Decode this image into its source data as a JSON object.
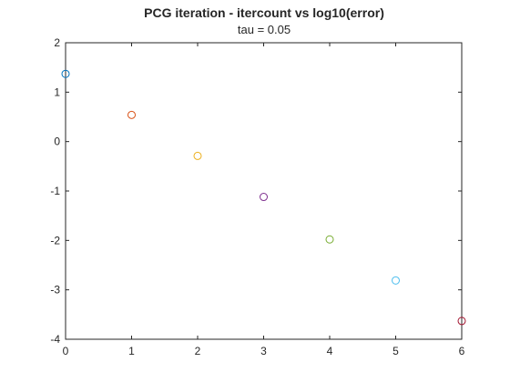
{
  "chart_data": {
    "type": "scatter",
    "title": "PCG iteration - itercount vs log10(error)",
    "subtitle": "tau = 0.05",
    "xlabel": "",
    "ylabel": "",
    "xlim": [
      0,
      6
    ],
    "ylim": [
      -4,
      2
    ],
    "xticks": [
      "0",
      "1",
      "2",
      "3",
      "4",
      "5",
      "6"
    ],
    "yticks": [
      "2",
      "1",
      "0",
      "-1",
      "-2",
      "-3",
      "-4"
    ],
    "grid": false,
    "marker": "circle-open",
    "points": [
      {
        "x": 0,
        "y": 1.37,
        "color": "#0072BD"
      },
      {
        "x": 1,
        "y": 0.54,
        "color": "#D95319"
      },
      {
        "x": 2,
        "y": -0.29,
        "color": "#EDB120"
      },
      {
        "x": 3,
        "y": -1.12,
        "color": "#7E2F8E"
      },
      {
        "x": 4,
        "y": -1.98,
        "color": "#77AC30"
      },
      {
        "x": 5,
        "y": -2.81,
        "color": "#4DBEEE"
      },
      {
        "x": 6,
        "y": -3.63,
        "color": "#A2142F"
      }
    ]
  }
}
